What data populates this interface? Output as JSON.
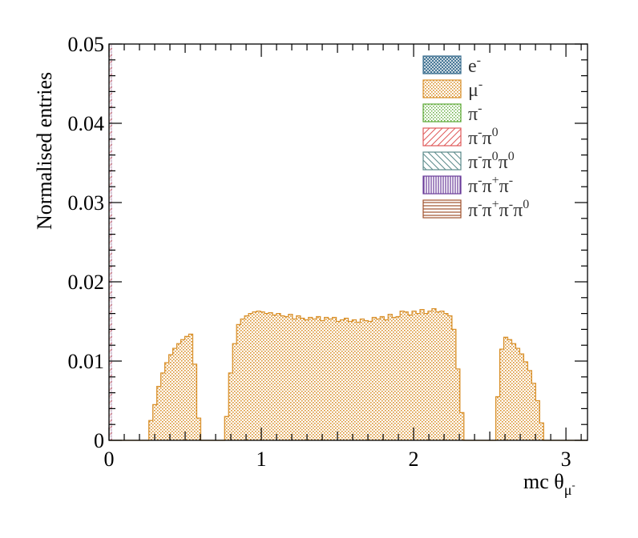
{
  "chart_data": {
    "type": "bar",
    "title": "",
    "xlabel": "mc θ",
    "xlabel_sub": "μ",
    "xlabel_sub_sup": "-",
    "ylabel": "Normalised entries",
    "xlim": [
      0,
      3.1416
    ],
    "ylim": [
      0,
      0.05
    ],
    "x_ticks": [
      "0",
      "1",
      "2",
      "3"
    ],
    "y_ticks": [
      "0",
      "0.01",
      "0.02",
      "0.03",
      "0.04",
      "0.05"
    ],
    "legend_position": "top-right",
    "bin_width": 0.02618,
    "series": [
      {
        "name": "e⁻",
        "color": "#3a6e8f",
        "pattern": "crosshatch",
        "values": []
      },
      {
        "name": "μ⁻",
        "color": "#d9902a",
        "pattern": "dots",
        "values": [
          0,
          0,
          0,
          0,
          0,
          0,
          0,
          0,
          0,
          0,
          0.0025,
          0.0045,
          0.0068,
          0.0085,
          0.0098,
          0.0108,
          0.0116,
          0.0122,
          0.0127,
          0.0131,
          0.0134,
          0.0096,
          0.0028,
          0,
          0,
          0,
          0,
          0,
          0,
          0.003,
          0.0085,
          0.0122,
          0.0146,
          0.0153,
          0.0157,
          0.016,
          0.0162,
          0.0163,
          0.0162,
          0.016,
          0.0161,
          0.0158,
          0.016,
          0.0157,
          0.0156,
          0.0159,
          0.0153,
          0.0157,
          0.0154,
          0.0152,
          0.0155,
          0.0153,
          0.0156,
          0.0151,
          0.0155,
          0.0153,
          0.0155,
          0.015,
          0.0152,
          0.0154,
          0.015,
          0.0152,
          0.0149,
          0.0153,
          0.0151,
          0.015,
          0.0155,
          0.0153,
          0.0156,
          0.0152,
          0.0159,
          0.0155,
          0.0156,
          0.0163,
          0.0162,
          0.0158,
          0.0163,
          0.016,
          0.0165,
          0.016,
          0.0163,
          0.0166,
          0.0162,
          0.0163,
          0.016,
          0.0157,
          0.014,
          0.009,
          0.0035,
          0,
          0,
          0,
          0,
          0,
          0,
          0,
          0,
          0.0055,
          0.0115,
          0.013,
          0.0127,
          0.0122,
          0.0116,
          0.0109,
          0.0099,
          0.0088,
          0.0072,
          0.005,
          0.0022,
          0,
          0,
          0,
          0,
          0,
          0,
          0,
          0,
          0,
          0,
          0
        ]
      },
      {
        "name": "π⁻",
        "color": "#5aa832",
        "pattern": "dots",
        "values": []
      },
      {
        "name": "π⁻π⁰",
        "color": "#e05a5a",
        "pattern": "diagonal",
        "values": []
      },
      {
        "name": "π⁻π⁰π⁰",
        "color": "#5a8a8a",
        "pattern": "antidiagonal",
        "values": []
      },
      {
        "name": "π⁻π⁺π⁻",
        "color": "#6a3d9a",
        "pattern": "vertical",
        "values": []
      },
      {
        "name": "π⁻π⁺π⁻π⁰",
        "color": "#a0522d",
        "pattern": "horizontal",
        "values": []
      }
    ]
  }
}
